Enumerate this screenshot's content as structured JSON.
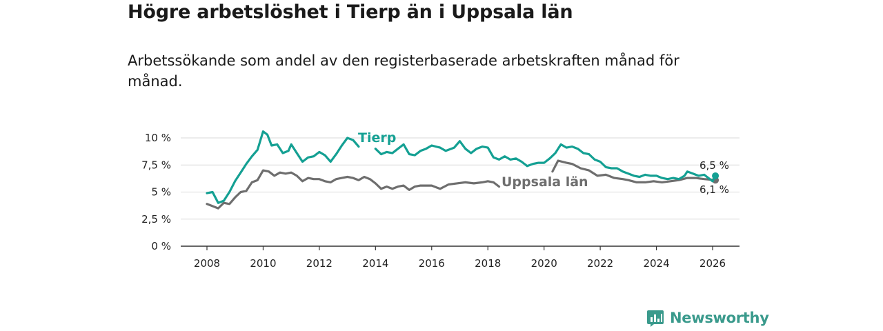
{
  "header": {
    "title": "Högre arbetslöshet i Tierp än i Uppsala län",
    "subtitle": "Arbetssökande som andel av den registerbaserade arbetskraften månad för månad."
  },
  "brand": {
    "name": "Newsworthy",
    "icon": "newsworthy-logo-icon",
    "color": "#3a9a8c"
  },
  "chart_data": {
    "type": "line",
    "title": "Högre arbetslöshet i Tierp än i Uppsala län",
    "subtitle": "Arbetssökande som andel av den registerbaserade arbetskraften månad för månad.",
    "xlabel": "",
    "ylabel": "",
    "xlim": [
      2007.5,
      2027.0
    ],
    "ylim": [
      0,
      10
    ],
    "x_ticks": [
      2008,
      2010,
      2012,
      2014,
      2016,
      2018,
      2020,
      2022,
      2024,
      2026
    ],
    "x_tick_labels": [
      "2008",
      "2010",
      "2012",
      "2014",
      "2016",
      "2018",
      "2020",
      "2022",
      "2024",
      "2026"
    ],
    "y_ticks": [
      0,
      2.5,
      5,
      7.5,
      10
    ],
    "y_tick_labels": [
      "0 %",
      "2,5 %",
      "5 %",
      "7,5 %",
      "10 %"
    ],
    "grid": true,
    "series": [
      {
        "name": "Tierp",
        "label": "Tierp",
        "color": "#14a093",
        "end_label": "6,5 %",
        "points": [
          [
            2008.0,
            4.9
          ],
          [
            2008.2,
            5.0
          ],
          [
            2008.4,
            4.0
          ],
          [
            2008.6,
            4.2
          ],
          [
            2008.8,
            5.0
          ],
          [
            2009.0,
            6.0
          ],
          [
            2009.2,
            6.8
          ],
          [
            2009.4,
            7.6
          ],
          [
            2009.6,
            8.3
          ],
          [
            2009.8,
            8.9
          ],
          [
            2010.0,
            10.6
          ],
          [
            2010.15,
            10.3
          ],
          [
            2010.3,
            9.3
          ],
          [
            2010.5,
            9.4
          ],
          [
            2010.7,
            8.6
          ],
          [
            2010.9,
            8.8
          ],
          [
            2011.0,
            9.4
          ],
          [
            2011.2,
            8.6
          ],
          [
            2011.4,
            7.8
          ],
          [
            2011.6,
            8.2
          ],
          [
            2011.8,
            8.3
          ],
          [
            2012.0,
            8.7
          ],
          [
            2012.2,
            8.4
          ],
          [
            2012.4,
            7.8
          ],
          [
            2012.6,
            8.5
          ],
          [
            2012.8,
            9.3
          ],
          [
            2013.0,
            10.0
          ],
          [
            2013.2,
            9.8
          ],
          [
            2013.4,
            9.2
          ],
          null,
          [
            2014.0,
            9.0
          ],
          [
            2014.2,
            8.5
          ],
          [
            2014.4,
            8.7
          ],
          [
            2014.6,
            8.6
          ],
          [
            2014.8,
            9.0
          ],
          [
            2015.0,
            9.4
          ],
          [
            2015.2,
            8.5
          ],
          [
            2015.4,
            8.4
          ],
          [
            2015.6,
            8.8
          ],
          [
            2015.8,
            9.0
          ],
          [
            2016.0,
            9.3
          ],
          [
            2016.3,
            9.1
          ],
          [
            2016.5,
            8.8
          ],
          [
            2016.8,
            9.1
          ],
          [
            2017.0,
            9.7
          ],
          [
            2017.2,
            9.0
          ],
          [
            2017.4,
            8.6
          ],
          [
            2017.6,
            9.0
          ],
          [
            2017.8,
            9.2
          ],
          [
            2018.0,
            9.1
          ],
          [
            2018.2,
            8.2
          ],
          [
            2018.4,
            8.0
          ],
          [
            2018.6,
            8.3
          ],
          [
            2018.8,
            8.0
          ],
          [
            2019.0,
            8.1
          ],
          [
            2019.2,
            7.8
          ],
          [
            2019.4,
            7.4
          ],
          [
            2019.6,
            7.6
          ],
          [
            2019.8,
            7.7
          ],
          [
            2020.0,
            7.7
          ],
          [
            2020.2,
            8.1
          ],
          [
            2020.4,
            8.6
          ],
          [
            2020.6,
            9.4
          ],
          [
            2020.8,
            9.1
          ],
          [
            2021.0,
            9.2
          ],
          [
            2021.2,
            9.0
          ],
          [
            2021.4,
            8.6
          ],
          [
            2021.6,
            8.5
          ],
          [
            2021.8,
            8.0
          ],
          [
            2022.0,
            7.8
          ],
          [
            2022.2,
            7.3
          ],
          [
            2022.4,
            7.2
          ],
          [
            2022.6,
            7.2
          ],
          [
            2022.8,
            6.9
          ],
          [
            2023.0,
            6.7
          ],
          [
            2023.2,
            6.5
          ],
          [
            2023.4,
            6.4
          ],
          [
            2023.6,
            6.6
          ],
          [
            2023.8,
            6.5
          ],
          [
            2024.0,
            6.5
          ],
          [
            2024.2,
            6.3
          ],
          [
            2024.4,
            6.2
          ],
          [
            2024.6,
            6.3
          ],
          [
            2024.8,
            6.2
          ],
          [
            2025.0,
            6.5
          ],
          [
            2025.1,
            6.9
          ],
          [
            2025.3,
            6.7
          ],
          [
            2025.5,
            6.5
          ],
          [
            2025.7,
            6.6
          ],
          [
            2025.9,
            6.2
          ],
          [
            2026.0,
            6.0
          ],
          [
            2026.1,
            6.5
          ]
        ]
      },
      {
        "name": "Uppsala län",
        "label": "Uppsala län",
        "color": "#6e6e6e",
        "end_label": "6,1 %",
        "points": [
          [
            2008.0,
            3.9
          ],
          [
            2008.2,
            3.7
          ],
          [
            2008.4,
            3.5
          ],
          [
            2008.6,
            4.0
          ],
          [
            2008.8,
            3.9
          ],
          [
            2009.0,
            4.5
          ],
          [
            2009.2,
            5.0
          ],
          [
            2009.4,
            5.1
          ],
          [
            2009.6,
            5.9
          ],
          [
            2009.8,
            6.1
          ],
          [
            2010.0,
            7.0
          ],
          [
            2010.2,
            6.9
          ],
          [
            2010.4,
            6.5
          ],
          [
            2010.6,
            6.8
          ],
          [
            2010.8,
            6.7
          ],
          [
            2011.0,
            6.8
          ],
          [
            2011.2,
            6.5
          ],
          [
            2011.4,
            6.0
          ],
          [
            2011.6,
            6.3
          ],
          [
            2011.8,
            6.2
          ],
          [
            2012.0,
            6.2
          ],
          [
            2012.2,
            6.0
          ],
          [
            2012.4,
            5.9
          ],
          [
            2012.6,
            6.2
          ],
          [
            2012.8,
            6.3
          ],
          [
            2013.0,
            6.4
          ],
          [
            2013.2,
            6.3
          ],
          [
            2013.4,
            6.1
          ],
          [
            2013.6,
            6.4
          ],
          [
            2013.8,
            6.2
          ],
          [
            2014.0,
            5.8
          ],
          [
            2014.2,
            5.3
          ],
          [
            2014.4,
            5.5
          ],
          [
            2014.6,
            5.3
          ],
          [
            2014.8,
            5.5
          ],
          [
            2015.0,
            5.6
          ],
          [
            2015.2,
            5.2
          ],
          [
            2015.4,
            5.5
          ],
          [
            2015.6,
            5.6
          ],
          [
            2015.8,
            5.6
          ],
          [
            2016.0,
            5.6
          ],
          [
            2016.3,
            5.3
          ],
          [
            2016.6,
            5.7
          ],
          [
            2016.9,
            5.8
          ],
          [
            2017.2,
            5.9
          ],
          [
            2017.5,
            5.8
          ],
          [
            2017.8,
            5.9
          ],
          [
            2018.0,
            6.0
          ],
          [
            2018.2,
            5.9
          ],
          [
            2018.4,
            5.5
          ],
          null,
          [
            2020.3,
            6.9
          ],
          [
            2020.5,
            7.9
          ],
          [
            2020.8,
            7.7
          ],
          [
            2021.0,
            7.6
          ],
          [
            2021.3,
            7.2
          ],
          [
            2021.6,
            7.0
          ],
          [
            2021.9,
            6.5
          ],
          [
            2022.2,
            6.6
          ],
          [
            2022.5,
            6.3
          ],
          [
            2022.8,
            6.2
          ],
          [
            2023.0,
            6.1
          ],
          [
            2023.3,
            5.9
          ],
          [
            2023.6,
            5.9
          ],
          [
            2023.9,
            6.0
          ],
          [
            2024.2,
            5.9
          ],
          [
            2024.5,
            6.0
          ],
          [
            2024.8,
            6.1
          ],
          [
            2025.1,
            6.3
          ],
          [
            2025.4,
            6.3
          ],
          [
            2025.7,
            6.2
          ],
          [
            2026.1,
            6.1
          ]
        ]
      }
    ]
  }
}
